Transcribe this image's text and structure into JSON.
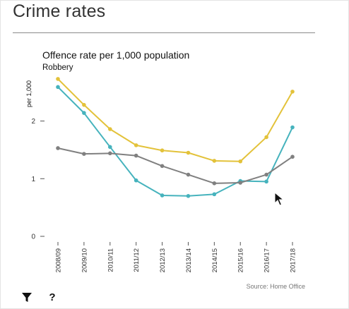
{
  "page": {
    "title": "Crime rates"
  },
  "toolbar": {
    "filter_icon": "filter-icon",
    "help_label": "?"
  },
  "chart_data": {
    "type": "line",
    "title": "Offence rate per 1,000 population",
    "subtitle": "Robbery",
    "ylabel": "per 1,000",
    "xlabel": "",
    "source": "Source: Home Office",
    "ylim": [
      0,
      2.9
    ],
    "yticks": [
      0,
      1,
      2
    ],
    "grid": false,
    "categories": [
      "2008/09",
      "2009/10",
      "2010/11",
      "2011/12",
      "2012/13",
      "2013/14",
      "2014/15",
      "2015/16",
      "2016/17",
      "2017/18"
    ],
    "series": [
      {
        "color": "#e3c23a",
        "values": [
          2.73,
          2.28,
          1.86,
          1.58,
          1.49,
          1.45,
          1.31,
          1.3,
          1.72,
          2.51
        ]
      },
      {
        "color": "#46b3bd",
        "values": [
          2.59,
          2.14,
          1.55,
          0.97,
          0.71,
          0.7,
          0.73,
          0.96,
          0.95,
          1.89
        ]
      },
      {
        "color": "#808080",
        "values": [
          1.53,
          1.43,
          1.44,
          1.4,
          1.22,
          1.07,
          0.92,
          0.93,
          1.07,
          1.38
        ]
      }
    ]
  }
}
